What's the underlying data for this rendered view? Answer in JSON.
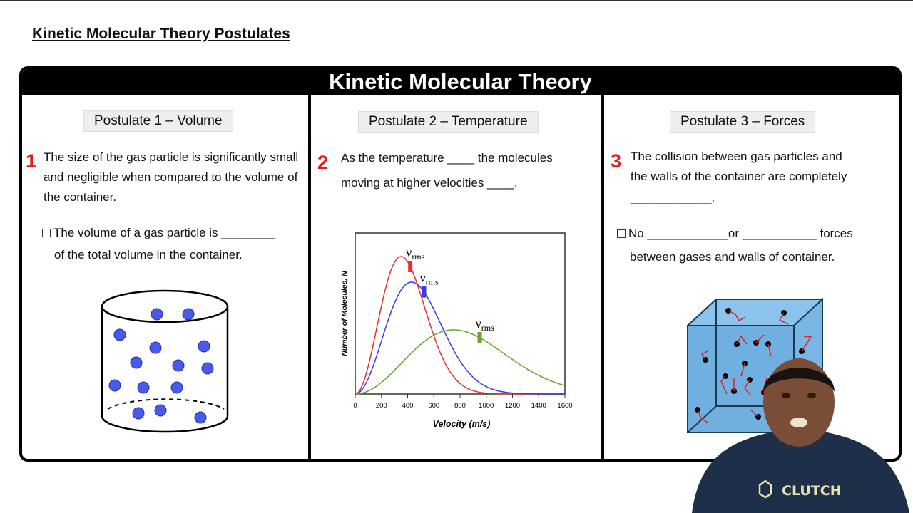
{
  "slide_title": "Kinetic Molecular Theory Postulates",
  "banner": "Kinetic Molecular Theory",
  "postulates": [
    {
      "number": "1",
      "heading": "Postulate 1 – Volume",
      "text": "The size of the gas particle is significantly small and negligible when compared to the volume of the container.",
      "check_line1": "The volume of a gas particle is ________",
      "check_line2": "of the total volume in the container."
    },
    {
      "number": "2",
      "heading": "Postulate 2 – Temperature",
      "line1": "As the temperature ____ the molecules",
      "line2": "moving at higher velocities ____."
    },
    {
      "number": "3",
      "heading": "Postulate 3 – Forces",
      "line1": "The collision between gas particles and",
      "line2": "the walls of the container are completely",
      "line3": "____________.",
      "check_line1": "No ____________or ___________ forces",
      "check_line2": "between gases and walls of container."
    }
  ],
  "chart_data": {
    "type": "line",
    "xlabel": "Velocity (m/s)",
    "ylabel": "Number of Molecules, N",
    "xlim": [
      0,
      1600
    ],
    "xticks": [
      "0",
      "200",
      "400",
      "600",
      "800",
      "1000",
      "1200",
      "1400",
      "1600"
    ],
    "grid": false,
    "marker_label_main": "ν",
    "marker_label_sub": "rms",
    "series": [
      {
        "color": "#e8302a",
        "peak_velocity": 350,
        "vrms": 420
      },
      {
        "color": "#3b3bea",
        "peak_velocity": 430,
        "vrms": 525
      },
      {
        "color": "#6aa034",
        "peak_velocity": 750,
        "vrms": 950
      }
    ]
  },
  "logo": "CLUTCH",
  "colors": {
    "accent": "#e31b1b",
    "container": "#6fb0e0"
  }
}
